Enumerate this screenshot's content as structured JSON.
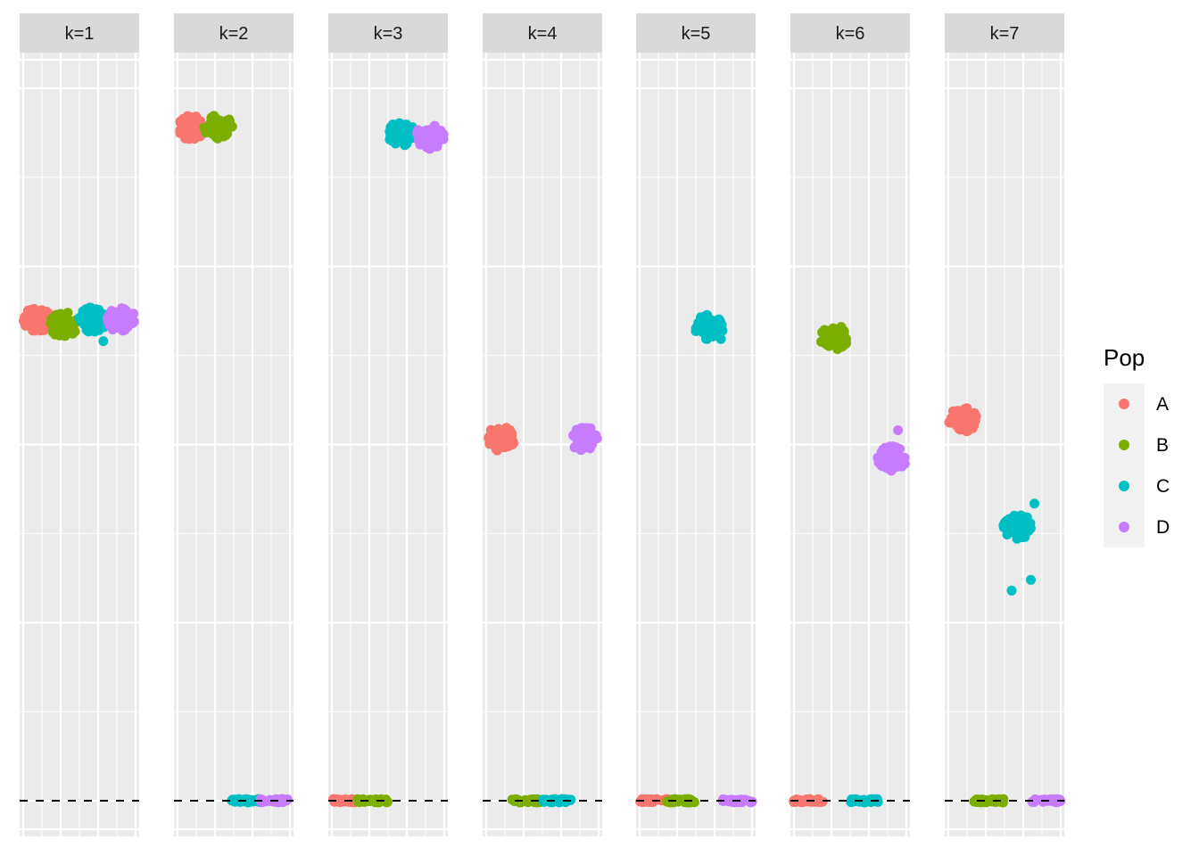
{
  "chart_data": {
    "type": "scatter",
    "facet_variable": "k",
    "facets": [
      "k=1",
      "k=2",
      "k=3",
      "k=4",
      "k=5",
      "k=6",
      "k=7"
    ],
    "reference_line": {
      "style": "dashed",
      "color": "#000000",
      "y": 0
    },
    "legend": {
      "title": "Pop",
      "position": "right",
      "entries": [
        {
          "label": "A",
          "color": "#F8766D"
        },
        {
          "label": "B",
          "color": "#7CAE00"
        },
        {
          "label": "C",
          "color": "#00BFC4"
        },
        {
          "label": "D",
          "color": "#C77CFF"
        }
      ]
    },
    "x_groups": [
      "A",
      "B",
      "C",
      "D"
    ],
    "ylim": [
      -0.05,
      1.05
    ],
    "clusters": [
      {
        "facet": "k=1",
        "pop": "A",
        "x": 0.15,
        "y": 0.675
      },
      {
        "facet": "k=1",
        "pop": "B",
        "x": 0.37,
        "y": 0.668
      },
      {
        "facet": "k=1",
        "pop": "C",
        "x": 0.61,
        "y": 0.675
      },
      {
        "facet": "k=1",
        "pop": "D",
        "x": 0.85,
        "y": 0.675
      },
      {
        "facet": "k=2",
        "pop": "A",
        "x": 0.15,
        "y": 0.945
      },
      {
        "facet": "k=2",
        "pop": "B",
        "x": 0.37,
        "y": 0.945
      },
      {
        "facet": "k=2",
        "pop": "C",
        "x": 0.61,
        "y": 0.0
      },
      {
        "facet": "k=2",
        "pop": "D",
        "x": 0.85,
        "y": 0.0
      },
      {
        "facet": "k=3",
        "pop": "A",
        "x": 0.15,
        "y": 0.0
      },
      {
        "facet": "k=3",
        "pop": "B",
        "x": 0.37,
        "y": 0.0
      },
      {
        "facet": "k=3",
        "pop": "C",
        "x": 0.61,
        "y": 0.937
      },
      {
        "facet": "k=3",
        "pop": "D",
        "x": 0.85,
        "y": 0.932
      },
      {
        "facet": "k=4",
        "pop": "A",
        "x": 0.15,
        "y": 0.508
      },
      {
        "facet": "k=4",
        "pop": "B",
        "x": 0.37,
        "y": 0.0
      },
      {
        "facet": "k=4",
        "pop": "C",
        "x": 0.61,
        "y": 0.0
      },
      {
        "facet": "k=4",
        "pop": "D",
        "x": 0.85,
        "y": 0.508
      },
      {
        "facet": "k=5",
        "pop": "A",
        "x": 0.15,
        "y": 0.0
      },
      {
        "facet": "k=5",
        "pop": "B",
        "x": 0.37,
        "y": 0.0
      },
      {
        "facet": "k=5",
        "pop": "C",
        "x": 0.61,
        "y": 0.665
      },
      {
        "facet": "k=5",
        "pop": "D",
        "x": 0.85,
        "y": 0.0
      },
      {
        "facet": "k=6",
        "pop": "A",
        "x": 0.15,
        "y": 0.0
      },
      {
        "facet": "k=6",
        "pop": "B",
        "x": 0.37,
        "y": 0.65
      },
      {
        "facet": "k=6",
        "pop": "C",
        "x": 0.61,
        "y": 0.0
      },
      {
        "facet": "k=6",
        "pop": "D",
        "x": 0.85,
        "y": 0.48
      },
      {
        "facet": "k=7",
        "pop": "A",
        "x": 0.15,
        "y": 0.535
      },
      {
        "facet": "k=7",
        "pop": "B",
        "x": 0.37,
        "y": 0.0
      },
      {
        "facet": "k=7",
        "pop": "C",
        "x": 0.61,
        "y": 0.385
      },
      {
        "facet": "k=7",
        "pop": "D",
        "x": 0.85,
        "y": 0.0
      }
    ],
    "outliers": [
      {
        "facet": "k=1",
        "pop": "C",
        "x": 0.7,
        "y": 0.645
      },
      {
        "facet": "k=5",
        "pop": "C",
        "x": 0.71,
        "y": 0.648
      },
      {
        "facet": "k=6",
        "pop": "D",
        "x": 0.9,
        "y": 0.52
      },
      {
        "facet": "k=7",
        "pop": "C",
        "x": 0.75,
        "y": 0.417
      },
      {
        "facet": "k=7",
        "pop": "C",
        "x": 0.72,
        "y": 0.31
      },
      {
        "facet": "k=7",
        "pop": "C",
        "x": 0.56,
        "y": 0.295
      }
    ]
  }
}
